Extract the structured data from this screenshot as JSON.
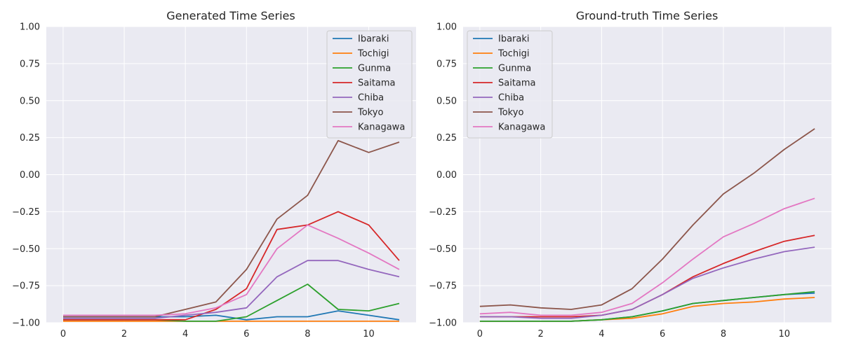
{
  "chart_data": [
    {
      "type": "line",
      "title": "Generated Time Series",
      "xlabel": "",
      "ylabel": "",
      "x": [
        0,
        1,
        2,
        3,
        4,
        5,
        6,
        7,
        8,
        9,
        10,
        11
      ],
      "xlim": [
        -0.55,
        11.55
      ],
      "ylim": [
        -1.0,
        1.0
      ],
      "xticks": [
        "0",
        "2",
        "4",
        "6",
        "8",
        "10"
      ],
      "yticks": [
        "1.00",
        "0.75",
        "0.50",
        "0.25",
        "0.00",
        "−0.25",
        "−0.50",
        "−0.75",
        "−1.00"
      ],
      "grid": true,
      "legend": "top-right",
      "series": [
        {
          "name": "Ibaraki",
          "color": "#1f77b4",
          "values": [
            -0.96,
            -0.96,
            -0.96,
            -0.96,
            -0.96,
            -0.95,
            -0.98,
            -0.96,
            -0.96,
            -0.92,
            -0.95,
            -0.98
          ]
        },
        {
          "name": "Tochigi",
          "color": "#ff7f0e",
          "values": [
            -0.99,
            -0.99,
            -0.99,
            -0.99,
            -0.99,
            -0.99,
            -0.99,
            -0.99,
            -0.99,
            -0.99,
            -0.99,
            -0.99
          ]
        },
        {
          "name": "Gunma",
          "color": "#2ca02c",
          "values": [
            -0.98,
            -0.98,
            -0.98,
            -0.98,
            -0.99,
            -0.99,
            -0.96,
            -0.85,
            -0.74,
            -0.91,
            -0.92,
            -0.87
          ]
        },
        {
          "name": "Saitama",
          "color": "#d62728",
          "values": [
            -0.98,
            -0.98,
            -0.98,
            -0.98,
            -0.98,
            -0.91,
            -0.77,
            -0.37,
            -0.34,
            -0.25,
            -0.34,
            -0.58
          ]
        },
        {
          "name": "Chiba",
          "color": "#9467bd",
          "values": [
            -0.97,
            -0.97,
            -0.97,
            -0.97,
            -0.95,
            -0.93,
            -0.9,
            -0.69,
            -0.58,
            -0.58,
            -0.64,
            -0.69
          ]
        },
        {
          "name": "Tokyo",
          "color": "#8c564b",
          "values": [
            -0.96,
            -0.96,
            -0.96,
            -0.96,
            -0.91,
            -0.86,
            -0.64,
            -0.3,
            -0.14,
            0.23,
            0.15,
            0.22
          ]
        },
        {
          "name": "Kanagawa",
          "color": "#e377c2",
          "values": [
            -0.95,
            -0.95,
            -0.95,
            -0.95,
            -0.94,
            -0.9,
            -0.81,
            -0.5,
            -0.34,
            -0.43,
            -0.53,
            -0.64
          ]
        }
      ]
    },
    {
      "type": "line",
      "title": "Ground-truth Time Series",
      "xlabel": "",
      "ylabel": "",
      "x": [
        0,
        1,
        2,
        3,
        4,
        5,
        6,
        7,
        8,
        9,
        10,
        11
      ],
      "xlim": [
        -0.55,
        11.55
      ],
      "ylim": [
        -1.0,
        1.0
      ],
      "xticks": [
        "0",
        "2",
        "4",
        "6",
        "8",
        "10"
      ],
      "yticks": [
        "1.00",
        "0.75",
        "0.50",
        "0.25",
        "0.00",
        "−0.25",
        "−0.50",
        "−0.75",
        "−1.00"
      ],
      "grid": true,
      "legend": "top-left",
      "series": [
        {
          "name": "Ibaraki",
          "color": "#1f77b4",
          "values": [
            -0.99,
            -0.99,
            -0.99,
            -0.99,
            -0.98,
            -0.96,
            -0.92,
            -0.87,
            -0.85,
            -0.83,
            -0.81,
            -0.8
          ]
        },
        {
          "name": "Tochigi",
          "color": "#ff7f0e",
          "values": [
            -0.99,
            -0.99,
            -0.99,
            -0.99,
            -0.98,
            -0.97,
            -0.94,
            -0.89,
            -0.87,
            -0.86,
            -0.84,
            -0.83
          ]
        },
        {
          "name": "Gunma",
          "color": "#2ca02c",
          "values": [
            -0.99,
            -0.99,
            -0.99,
            -0.99,
            -0.98,
            -0.96,
            -0.92,
            -0.87,
            -0.85,
            -0.83,
            -0.81,
            -0.79
          ]
        },
        {
          "name": "Saitama",
          "color": "#d62728",
          "values": [
            -0.96,
            -0.96,
            -0.96,
            -0.96,
            -0.95,
            -0.91,
            -0.81,
            -0.69,
            -0.6,
            -0.52,
            -0.45,
            -0.41
          ]
        },
        {
          "name": "Chiba",
          "color": "#9467bd",
          "values": [
            -0.96,
            -0.96,
            -0.97,
            -0.97,
            -0.95,
            -0.91,
            -0.81,
            -0.7,
            -0.63,
            -0.57,
            -0.52,
            -0.49
          ]
        },
        {
          "name": "Tokyo",
          "color": "#8c564b",
          "values": [
            -0.89,
            -0.88,
            -0.9,
            -0.91,
            -0.88,
            -0.77,
            -0.57,
            -0.34,
            -0.13,
            0.01,
            0.17,
            0.31
          ]
        },
        {
          "name": "Kanagawa",
          "color": "#e377c2",
          "values": [
            -0.94,
            -0.93,
            -0.95,
            -0.95,
            -0.93,
            -0.87,
            -0.73,
            -0.57,
            -0.42,
            -0.33,
            -0.23,
            -0.16
          ]
        }
      ]
    }
  ]
}
